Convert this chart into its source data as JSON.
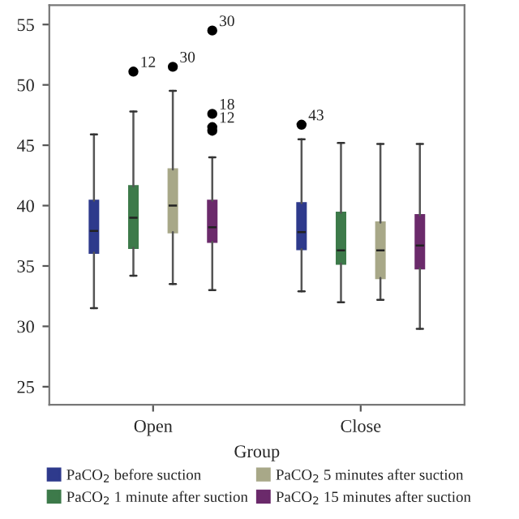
{
  "chart_data": {
    "type": "box",
    "xlabel": "Group",
    "categories": [
      "Open",
      "Close"
    ],
    "ylim": [
      23.5,
      56.6
    ],
    "yticks": [
      25,
      30,
      35,
      40,
      45,
      50,
      55
    ],
    "grid": false,
    "legend": "bottom",
    "series": [
      {
        "name": "PaCO$_{2}$ before suction",
        "color": "#2e3a8c",
        "boxes": [
          {
            "low": 31.5,
            "q1": 36.1,
            "median": 37.9,
            "q3": 40.4,
            "high": 45.9
          },
          {
            "low": 32.9,
            "q1": 36.4,
            "median": 37.8,
            "q3": 40.2,
            "high": 45.5,
            "outliers": [
              46.7
            ]
          }
        ]
      },
      {
        "name": "PaCO$_{2}$ 1 minute after suction",
        "color": "#3d7a4a",
        "boxes": [
          {
            "low": 34.2,
            "q1": 36.5,
            "median": 39.0,
            "q3": 41.6,
            "high": 47.8,
            "outliers": [
              51.1
            ]
          },
          {
            "low": 32.0,
            "q1": 35.2,
            "median": 36.3,
            "q3": 39.4,
            "high": 45.2
          }
        ]
      },
      {
        "name": "PaCO$_{2}$ 5 minutes after suction",
        "color": "#a8a888",
        "boxes": [
          {
            "low": 33.5,
            "q1": 37.8,
            "median": 40.0,
            "q3": 43.0,
            "high": 49.5,
            "outliers": [
              51.5
            ]
          },
          {
            "low": 32.2,
            "q1": 34.0,
            "median": 36.3,
            "q3": 38.6,
            "high": 45.1
          }
        ]
      },
      {
        "name": "PaCO$_{2}$ 15 minutes after suction",
        "color": "#6b2a6b",
        "boxes": [
          {
            "low": 33.0,
            "q1": 37.0,
            "median": 38.2,
            "q3": 40.4,
            "high": 44.0,
            "outliers": [
              54.5,
              47.6,
              46.5,
              46.2
            ]
          },
          {
            "low": 29.8,
            "q1": 34.8,
            "median": 36.7,
            "q3": 39.2,
            "high": 45.1
          }
        ]
      }
    ],
    "annotations": [
      "43",
      "12",
      "30",
      "30",
      "18",
      "12"
    ]
  }
}
